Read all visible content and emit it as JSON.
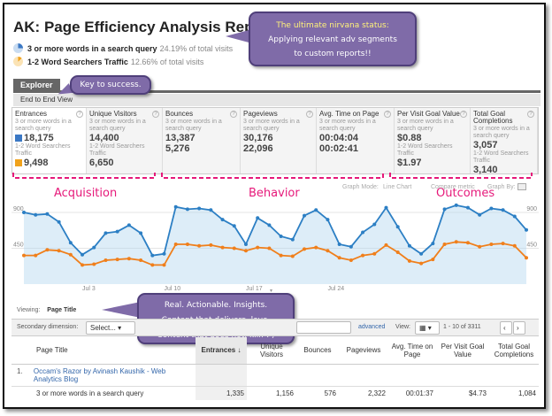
{
  "report_title": "AK: Page Efficiency Analysis Report",
  "segments": [
    {
      "label": "3 or more words in a search query",
      "pct": "24.19% of total visits",
      "color": "#3b78c4"
    },
    {
      "label": "1-2 Word Searchers Traffic",
      "pct": "12.66% of total visits",
      "color": "#f0a21c"
    }
  ],
  "callouts": {
    "nirvana": [
      "The ultimate nirvana status:",
      "Applying relevant adv segments",
      "to custom reports!!"
    ],
    "key": "Key to success.",
    "insights": [
      "Real. Actionable. Insights.",
      "Content that delivers, love.",
      "Content that does not, kill! : )"
    ]
  },
  "tabs": {
    "explorer": "Explorer",
    "subtab": "End to End View"
  },
  "metrics": [
    {
      "name": "Entrances",
      "seg1": "3 or more words in a search query",
      "v1": "18,175",
      "seg2": "1-2 Word Searchers Traffic",
      "v2": "9,498"
    },
    {
      "name": "Unique Visitors",
      "seg1": "3 or more words in a search query",
      "v1": "14,400",
      "seg2": "1-2 Word Searchers Traffic",
      "v2": "6,650"
    },
    {
      "name": "Bounces",
      "seg1": "3 or more words in a search query",
      "v1": "13,387",
      "seg2": "",
      "v2": "5,276"
    },
    {
      "name": "Pageviews",
      "seg1": "3 or more words in a search query",
      "v1": "30,176",
      "seg2": "",
      "v2": "22,096"
    },
    {
      "name": "Avg. Time on Page",
      "seg1": "3 or more words in a search query",
      "v1": "00:04:04",
      "seg2": "",
      "v2": "00:02:41"
    },
    {
      "name": "Per Visit Goal Value",
      "seg1": "3 or more words in a search query",
      "v1": "$0.88",
      "seg2": "1-2 Word Searchers Traffic",
      "v2": "$1.97"
    },
    {
      "name": "Total Goal Completions",
      "seg1": "3 or more words in a search query",
      "v1": "3,057",
      "seg2": "1-2 Word Searchers Traffic",
      "v2": "3,140"
    }
  ],
  "groups": {
    "acquisition": "Acquisition",
    "behavior": "Behavior",
    "outcomes": "Outcomes"
  },
  "chart_options": {
    "mode": "Graph Mode:",
    "line": "Line Chart",
    "compare": "Compare metric",
    "graph_by": "Graph By:"
  },
  "chart_data": {
    "type": "line",
    "x_ticks": [
      "Jul 3",
      "Jul 10",
      "Jul 17",
      "Jul 24"
    ],
    "y_ticks_left": [
      900,
      450
    ],
    "y_ticks_right": [
      900,
      450
    ],
    "ylim": [
      0,
      1000
    ],
    "series": [
      {
        "values": [
          900,
          870,
          880,
          780,
          520,
          370,
          460,
          640,
          660,
          740,
          640,
          360,
          380,
          970,
          940,
          950,
          930,
          810,
          730,
          500,
          830,
          740,
          600,
          560,
          860,
          930,
          810,
          500,
          470,
          650,
          750,
          960,
          720,
          480,
          380,
          510,
          940,
          990,
          960,
          870,
          950,
          930,
          850,
          680
        ]
      },
      {
        "values": [
          360,
          360,
          430,
          420,
          370,
          240,
          250,
          300,
          310,
          320,
          300,
          240,
          240,
          500,
          500,
          480,
          490,
          460,
          450,
          420,
          460,
          450,
          360,
          350,
          440,
          460,
          420,
          330,
          300,
          360,
          380,
          490,
          400,
          290,
          260,
          310,
          500,
          530,
          520,
          470,
          500,
          510,
          480,
          330
        ]
      }
    ]
  },
  "table_controls": {
    "viewing_label": "Viewing:",
    "viewing_value": "Page Title",
    "secondary_label": "Secondary dimension:",
    "select_label": "Select...",
    "advanced": "advanced",
    "view_label": "View:",
    "pagination": "1 - 10 of 3311"
  },
  "table": {
    "headers": [
      "Page Title",
      "Entrances",
      "Unique Visitors",
      "Bounces",
      "Pageviews",
      "Avg. Time on Page",
      "Per Visit Goal Value",
      "Total Goal Completions"
    ],
    "row1_index": "1.",
    "row1_title": "Occam's Razor by Avinash Kaushik - Web Analytics Blog",
    "row2_label": "3 or more words in a search query",
    "row2_values": [
      "1,335",
      "1,156",
      "576",
      "2,322",
      "00:01:37",
      "$4.73",
      "1,084"
    ]
  }
}
